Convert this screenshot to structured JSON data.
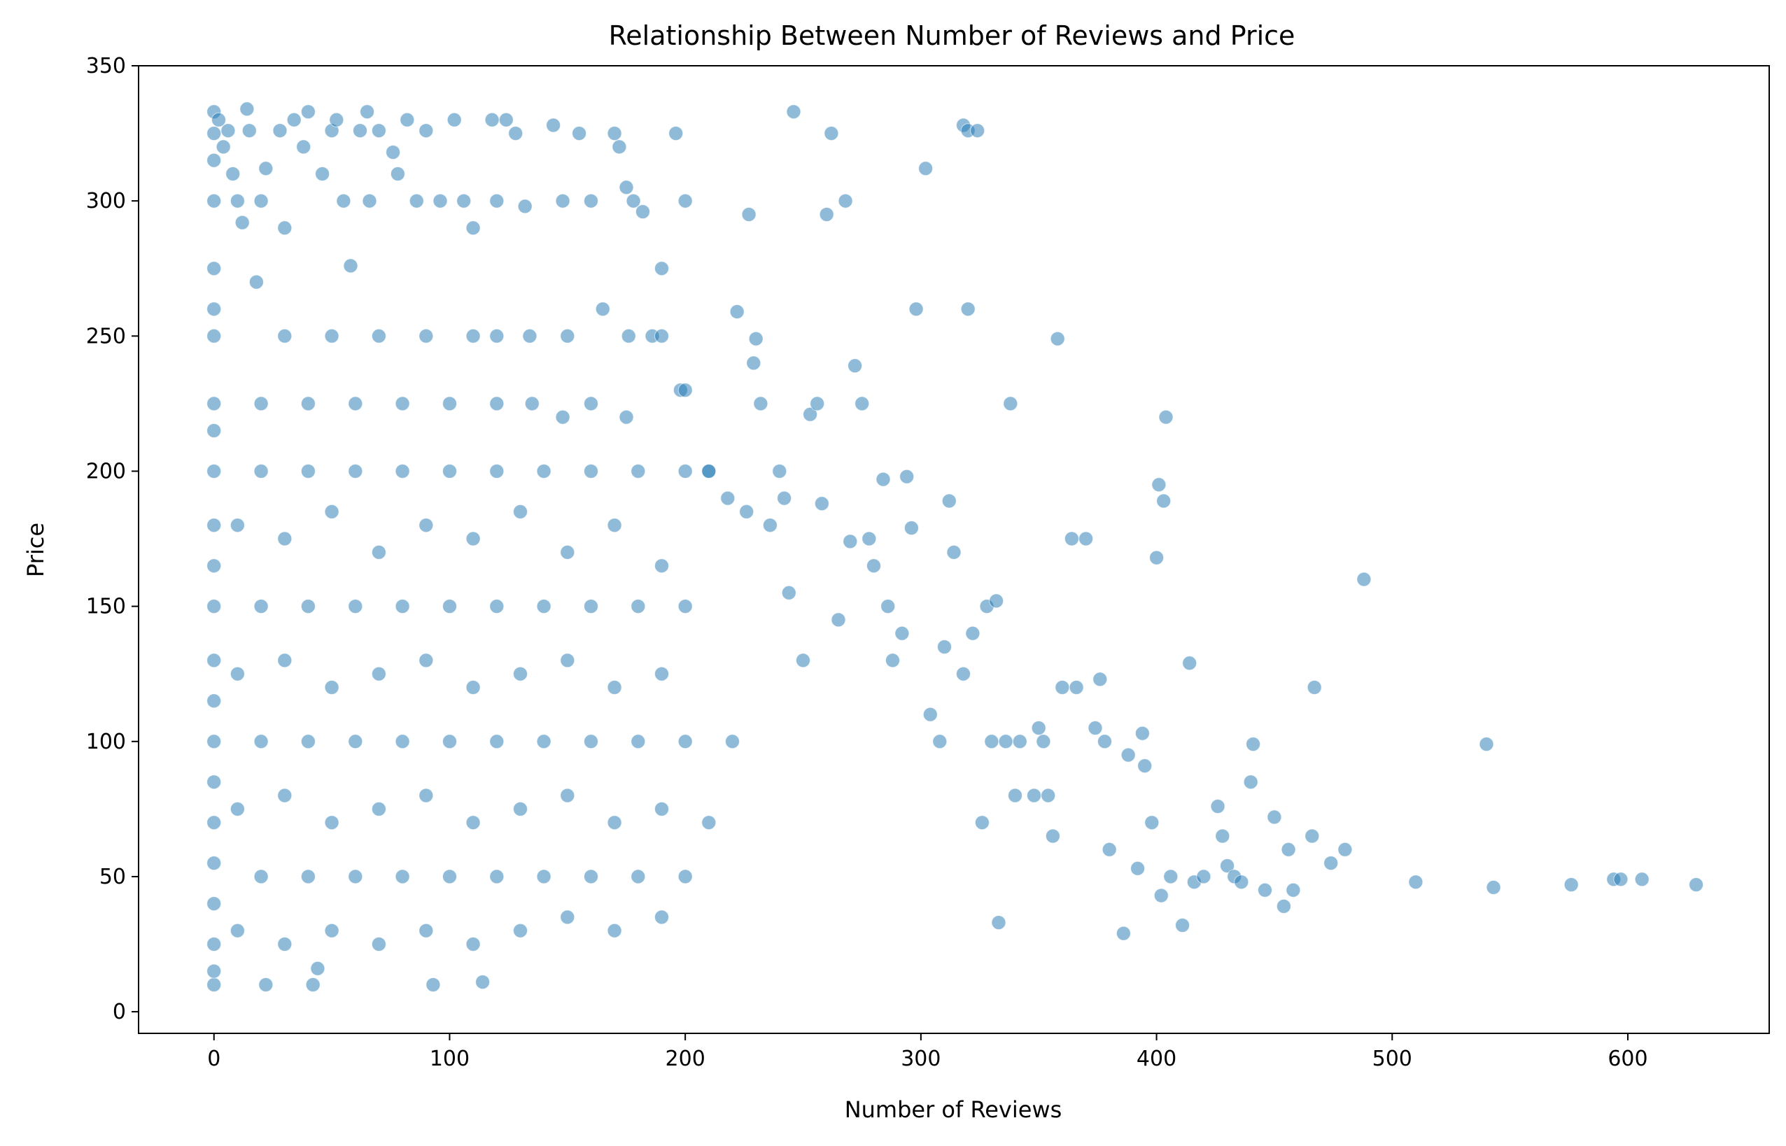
{
  "chart_data": {
    "type": "scatter",
    "title": "Relationship Between Number of Reviews and Price",
    "xlabel": "Number of Reviews",
    "ylabel": "Price",
    "xlim": [
      -32,
      660
    ],
    "ylim": [
      -8,
      350
    ],
    "xticks": [
      0,
      100,
      200,
      300,
      400,
      500,
      600
    ],
    "yticks": [
      0,
      50,
      100,
      150,
      200,
      250,
      300,
      350
    ],
    "grid": false,
    "legend": "none",
    "marker_color": "#1f77b4",
    "marker_alpha": 0.5,
    "series": [
      {
        "points": [
          [
            0,
            10
          ],
          [
            0,
            15
          ],
          [
            0,
            25
          ],
          [
            0,
            40
          ],
          [
            0,
            55
          ],
          [
            0,
            70
          ],
          [
            0,
            85
          ],
          [
            0,
            100
          ],
          [
            0,
            115
          ],
          [
            0,
            130
          ],
          [
            0,
            150
          ],
          [
            0,
            165
          ],
          [
            0,
            180
          ],
          [
            0,
            200
          ],
          [
            0,
            215
          ],
          [
            0,
            225
          ],
          [
            0,
            250
          ],
          [
            0,
            260
          ],
          [
            0,
            275
          ],
          [
            0,
            300
          ],
          [
            0,
            315
          ],
          [
            0,
            325
          ],
          [
            0,
            333
          ],
          [
            2,
            330
          ],
          [
            4,
            320
          ],
          [
            6,
            326
          ],
          [
            8,
            310
          ],
          [
            10,
            300
          ],
          [
            12,
            292
          ],
          [
            14,
            334
          ],
          [
            15,
            326
          ],
          [
            18,
            270
          ],
          [
            20,
            300
          ],
          [
            22,
            312
          ],
          [
            22,
            10
          ],
          [
            28,
            326
          ],
          [
            30,
            290
          ],
          [
            34,
            330
          ],
          [
            38,
            320
          ],
          [
            40,
            333
          ],
          [
            42,
            10
          ],
          [
            44,
            16
          ],
          [
            46,
            310
          ],
          [
            50,
            326
          ],
          [
            52,
            330
          ],
          [
            55,
            300
          ],
          [
            58,
            276
          ],
          [
            62,
            326
          ],
          [
            65,
            333
          ],
          [
            66,
            300
          ],
          [
            70,
            326
          ],
          [
            76,
            318
          ],
          [
            78,
            310
          ],
          [
            82,
            330
          ],
          [
            86,
            300
          ],
          [
            90,
            326
          ],
          [
            93,
            10
          ],
          [
            96,
            300
          ],
          [
            102,
            330
          ],
          [
            106,
            300
          ],
          [
            110,
            290
          ],
          [
            114,
            11
          ],
          [
            118,
            330
          ],
          [
            120,
            300
          ],
          [
            124,
            330
          ],
          [
            128,
            325
          ],
          [
            132,
            298
          ],
          [
            144,
            328
          ],
          [
            148,
            300
          ],
          [
            155,
            325
          ],
          [
            160,
            300
          ],
          [
            165,
            260
          ],
          [
            170,
            325
          ],
          [
            172,
            320
          ],
          [
            175,
            305
          ],
          [
            178,
            300
          ],
          [
            182,
            296
          ],
          [
            186,
            250
          ],
          [
            190,
            275
          ],
          [
            196,
            325
          ],
          [
            200,
            300
          ],
          [
            198,
            230
          ],
          [
            30,
            250
          ],
          [
            50,
            250
          ],
          [
            70,
            250
          ],
          [
            90,
            250
          ],
          [
            110,
            250
          ],
          [
            120,
            250
          ],
          [
            134,
            250
          ],
          [
            150,
            250
          ],
          [
            176,
            250
          ],
          [
            190,
            250
          ],
          [
            20,
            225
          ],
          [
            40,
            225
          ],
          [
            60,
            225
          ],
          [
            80,
            225
          ],
          [
            100,
            225
          ],
          [
            120,
            225
          ],
          [
            135,
            225
          ],
          [
            148,
            220
          ],
          [
            160,
            225
          ],
          [
            175,
            220
          ],
          [
            20,
            200
          ],
          [
            40,
            200
          ],
          [
            60,
            200
          ],
          [
            80,
            200
          ],
          [
            100,
            200
          ],
          [
            120,
            200
          ],
          [
            140,
            200
          ],
          [
            160,
            200
          ],
          [
            180,
            200
          ],
          [
            200,
            200
          ],
          [
            210,
            200
          ],
          [
            20,
            150
          ],
          [
            40,
            150
          ],
          [
            60,
            150
          ],
          [
            80,
            150
          ],
          [
            100,
            150
          ],
          [
            120,
            150
          ],
          [
            140,
            150
          ],
          [
            160,
            150
          ],
          [
            180,
            150
          ],
          [
            200,
            150
          ],
          [
            20,
            100
          ],
          [
            40,
            100
          ],
          [
            60,
            100
          ],
          [
            80,
            100
          ],
          [
            100,
            100
          ],
          [
            120,
            100
          ],
          [
            140,
            100
          ],
          [
            160,
            100
          ],
          [
            180,
            100
          ],
          [
            200,
            100
          ],
          [
            220,
            100
          ],
          [
            20,
            50
          ],
          [
            40,
            50
          ],
          [
            60,
            50
          ],
          [
            80,
            50
          ],
          [
            100,
            50
          ],
          [
            120,
            50
          ],
          [
            140,
            50
          ],
          [
            160,
            50
          ],
          [
            180,
            50
          ],
          [
            200,
            50
          ],
          [
            10,
            30
          ],
          [
            30,
            25
          ],
          [
            50,
            30
          ],
          [
            70,
            25
          ],
          [
            90,
            30
          ],
          [
            110,
            25
          ],
          [
            130,
            30
          ],
          [
            150,
            35
          ],
          [
            170,
            30
          ],
          [
            190,
            35
          ],
          [
            10,
            180
          ],
          [
            30,
            175
          ],
          [
            50,
            185
          ],
          [
            70,
            170
          ],
          [
            90,
            180
          ],
          [
            110,
            175
          ],
          [
            130,
            185
          ],
          [
            150,
            170
          ],
          [
            170,
            180
          ],
          [
            190,
            165
          ],
          [
            10,
            125
          ],
          [
            30,
            130
          ],
          [
            50,
            120
          ],
          [
            70,
            125
          ],
          [
            90,
            130
          ],
          [
            110,
            120
          ],
          [
            130,
            125
          ],
          [
            150,
            130
          ],
          [
            170,
            120
          ],
          [
            190,
            125
          ],
          [
            10,
            75
          ],
          [
            30,
            80
          ],
          [
            50,
            70
          ],
          [
            70,
            75
          ],
          [
            90,
            80
          ],
          [
            110,
            70
          ],
          [
            130,
            75
          ],
          [
            150,
            80
          ],
          [
            170,
            70
          ],
          [
            190,
            75
          ],
          [
            210,
            70
          ],
          [
            200,
            230
          ],
          [
            210,
            200
          ],
          [
            218,
            190
          ],
          [
            222,
            259
          ],
          [
            226,
            185
          ],
          [
            227,
            295
          ],
          [
            229,
            240
          ],
          [
            230,
            249
          ],
          [
            232,
            225
          ],
          [
            236,
            180
          ],
          [
            240,
            200
          ],
          [
            242,
            190
          ],
          [
            244,
            155
          ],
          [
            246,
            333
          ],
          [
            250,
            130
          ],
          [
            253,
            221
          ],
          [
            256,
            225
          ],
          [
            258,
            188
          ],
          [
            260,
            295
          ],
          [
            262,
            325
          ],
          [
            265,
            145
          ],
          [
            268,
            300
          ],
          [
            270,
            174
          ],
          [
            272,
            239
          ],
          [
            275,
            225
          ],
          [
            278,
            175
          ],
          [
            280,
            165
          ],
          [
            284,
            197
          ],
          [
            286,
            150
          ],
          [
            288,
            130
          ],
          [
            292,
            140
          ],
          [
            294,
            198
          ],
          [
            296,
            179
          ],
          [
            298,
            260
          ],
          [
            302,
            312
          ],
          [
            304,
            110
          ],
          [
            308,
            100
          ],
          [
            310,
            135
          ],
          [
            312,
            189
          ],
          [
            314,
            170
          ],
          [
            318,
            328
          ],
          [
            318,
            125
          ],
          [
            320,
            260
          ],
          [
            320,
            326
          ],
          [
            322,
            140
          ],
          [
            324,
            326
          ],
          [
            326,
            70
          ],
          [
            328,
            150
          ],
          [
            330,
            100
          ],
          [
            332,
            152
          ],
          [
            333,
            33
          ],
          [
            336,
            100
          ],
          [
            338,
            225
          ],
          [
            340,
            80
          ],
          [
            342,
            100
          ],
          [
            348,
            80
          ],
          [
            350,
            105
          ],
          [
            352,
            100
          ],
          [
            354,
            80
          ],
          [
            356,
            65
          ],
          [
            358,
            249
          ],
          [
            360,
            120
          ],
          [
            364,
            175
          ],
          [
            366,
            120
          ],
          [
            370,
            175
          ],
          [
            374,
            105
          ],
          [
            376,
            123
          ],
          [
            378,
            100
          ],
          [
            380,
            60
          ],
          [
            386,
            29
          ],
          [
            388,
            95
          ],
          [
            392,
            53
          ],
          [
            394,
            103
          ],
          [
            395,
            91
          ],
          [
            398,
            70
          ],
          [
            400,
            168
          ],
          [
            401,
            195
          ],
          [
            402,
            43
          ],
          [
            403,
            189
          ],
          [
            404,
            220
          ],
          [
            406,
            50
          ],
          [
            411,
            32
          ],
          [
            414,
            129
          ],
          [
            416,
            48
          ],
          [
            420,
            50
          ],
          [
            426,
            76
          ],
          [
            428,
            65
          ],
          [
            430,
            54
          ],
          [
            433,
            50
          ],
          [
            436,
            48
          ],
          [
            440,
            85
          ],
          [
            441,
            99
          ],
          [
            446,
            45
          ],
          [
            450,
            72
          ],
          [
            454,
            39
          ],
          [
            456,
            60
          ],
          [
            458,
            45
          ],
          [
            466,
            65
          ],
          [
            467,
            120
          ],
          [
            474,
            55
          ],
          [
            480,
            60
          ],
          [
            488,
            160
          ],
          [
            510,
            48
          ],
          [
            540,
            99
          ],
          [
            543,
            46
          ],
          [
            576,
            47
          ],
          [
            594,
            49
          ],
          [
            597,
            49
          ],
          [
            606,
            49
          ],
          [
            629,
            47
          ]
        ]
      }
    ]
  }
}
